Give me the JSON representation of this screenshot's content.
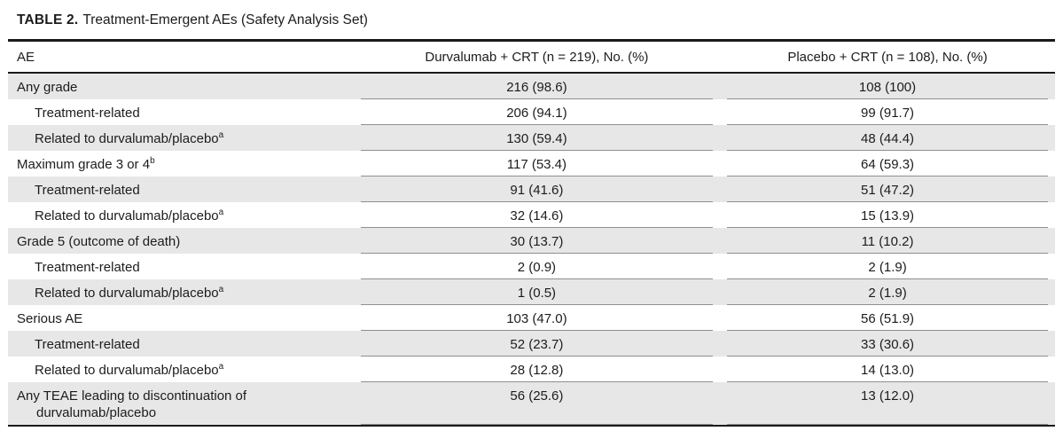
{
  "title": {
    "label": "TABLE 2.",
    "text": "Treatment-Emergent AEs (Safety Analysis Set)"
  },
  "colors": {
    "shading": "#e7e7e8",
    "rule-dark": "#1a1a1a",
    "rule-light": "#8f8f8f"
  },
  "table": {
    "columns": [
      {
        "label": "AE"
      },
      {
        "label": "Durvalumab + CRT (n = 219), No. (%)"
      },
      {
        "label": "Placebo + CRT (n = 108), No. (%)"
      }
    ],
    "rows": [
      {
        "label": "Any grade",
        "sup": "",
        "indent": false,
        "durvalumab": "216 (98.6)",
        "placebo": "108 (100)"
      },
      {
        "label": "Treatment-related",
        "sup": "",
        "indent": true,
        "durvalumab": "206 (94.1)",
        "placebo": "99 (91.7)"
      },
      {
        "label": "Related to durvalumab/placebo",
        "sup": "a",
        "indent": true,
        "durvalumab": "130 (59.4)",
        "placebo": "48 (44.4)"
      },
      {
        "label": "Maximum grade 3 or 4",
        "sup": "b",
        "indent": false,
        "durvalumab": "117 (53.4)",
        "placebo": "64 (59.3)"
      },
      {
        "label": "Treatment-related",
        "sup": "",
        "indent": true,
        "durvalumab": "91 (41.6)",
        "placebo": "51 (47.2)"
      },
      {
        "label": "Related to durvalumab/placebo",
        "sup": "a",
        "indent": true,
        "durvalumab": "32 (14.6)",
        "placebo": "15 (13.9)"
      },
      {
        "label": "Grade 5 (outcome of death)",
        "sup": "",
        "indent": false,
        "durvalumab": "30 (13.7)",
        "placebo": "11 (10.2)"
      },
      {
        "label": "Treatment-related",
        "sup": "",
        "indent": true,
        "durvalumab": "2 (0.9)",
        "placebo": "2 (1.9)"
      },
      {
        "label": "Related to durvalumab/placebo",
        "sup": "a",
        "indent": true,
        "durvalumab": "1 (0.5)",
        "placebo": "2 (1.9)"
      },
      {
        "label": "Serious AE",
        "sup": "",
        "indent": false,
        "durvalumab": "103 (47.0)",
        "placebo": "56 (51.9)"
      },
      {
        "label": "Treatment-related",
        "sup": "",
        "indent": true,
        "durvalumab": "52 (23.7)",
        "placebo": "33 (30.6)"
      },
      {
        "label": "Related to durvalumab/placebo",
        "sup": "a",
        "indent": true,
        "durvalumab": "28 (12.8)",
        "placebo": "14 (13.0)"
      },
      {
        "label": "Any TEAE leading to discontinuation of durvalumab/placebo",
        "sup": "",
        "indent": false,
        "durvalumab": "56 (25.6)",
        "placebo": "13 (12.0)"
      }
    ]
  }
}
